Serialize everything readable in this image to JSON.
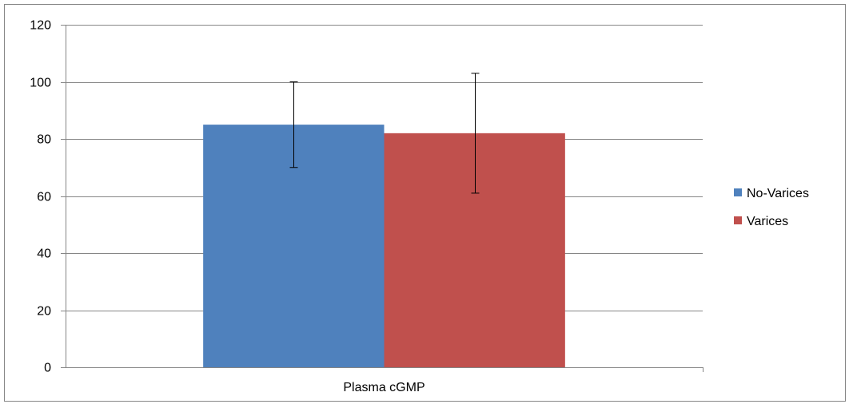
{
  "chart_data": {
    "type": "bar",
    "title": "",
    "xlabel": "",
    "ylabel": "",
    "categories": [
      "Plasma cGMP"
    ],
    "series": [
      {
        "name": "No-Varices",
        "values": [
          85
        ],
        "error": [
          15
        ],
        "color": "#4F81BD"
      },
      {
        "name": "Varices",
        "values": [
          82
        ],
        "error": [
          21
        ],
        "color": "#C0504D"
      }
    ],
    "ylim": [
      0,
      120
    ],
    "yticks": [
      0,
      20,
      40,
      60,
      80,
      100,
      120
    ],
    "grid": true,
    "legend_position": "right"
  }
}
